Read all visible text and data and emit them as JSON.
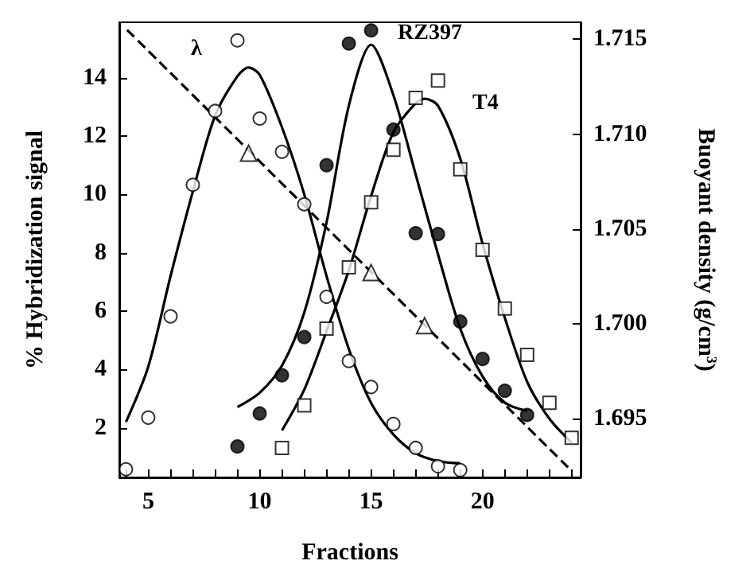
{
  "chart_data": {
    "type": "scatter",
    "xlabel": "Fractions",
    "ylabel": "% Hybridization signal",
    "y2label": "Buoyant density (g/cm$^{3}$)",
    "xlim": [
      3.7,
      24.4
    ],
    "xticks": [
      {
        "value": 4,
        "label": null
      },
      5,
      {
        "value": 6,
        "label": null
      },
      {
        "value": 7,
        "label": null
      },
      {
        "value": 8,
        "label": null
      },
      {
        "value": 9,
        "label": null
      },
      10,
      {
        "value": 11,
        "label": null
      },
      {
        "value": 12,
        "label": null
      },
      {
        "value": 13,
        "label": null
      },
      {
        "value": 14,
        "label": null
      },
      15,
      {
        "value": 16,
        "label": null
      },
      {
        "value": 17,
        "label": null
      },
      {
        "value": 18,
        "label": null
      },
      {
        "value": 19,
        "label": null
      },
      20,
      {
        "value": 21,
        "label": null
      },
      {
        "value": 22,
        "label": null
      },
      {
        "value": 23,
        "label": null
      },
      {
        "value": 24,
        "label": null
      }
    ],
    "ylim": [
      0.3,
      15.9
    ],
    "yticks": [
      2,
      4,
      6,
      8,
      10,
      12,
      14
    ],
    "y2lim": [
      1.6919,
      1.7159
    ],
    "y2ticks": [
      {
        "value": 1.695,
        "label": "1.695"
      },
      {
        "value": 1.7,
        "label": "1.700"
      },
      {
        "value": 1.705,
        "label": "1.705"
      },
      {
        "value": 1.71,
        "label": "1.710"
      },
      {
        "value": 1.715,
        "label": "1.715"
      }
    ],
    "grid": false,
    "series": [
      {
        "marker": "circle",
        "color": "#ffffff",
        "x": [
          4,
          5,
          6,
          7,
          8,
          9,
          10,
          11,
          12,
          13,
          14,
          15,
          16,
          17,
          18,
          19
        ],
        "values": [
          0.58,
          2.35,
          5.82,
          10.33,
          12.86,
          15.28,
          12.6,
          11.46,
          9.66,
          6.49,
          4.29,
          3.4,
          2.13,
          1.31,
          0.68,
          0.55
        ]
      },
      {
        "marker": "circle",
        "color": "#000000",
        "x": [
          9,
          10,
          11,
          12,
          13,
          14,
          15,
          16,
          17,
          18,
          19,
          20,
          21,
          22
        ],
        "values": [
          1.36,
          2.49,
          3.8,
          5.11,
          11.0,
          15.17,
          15.62,
          12.22,
          8.67,
          8.64,
          5.64,
          4.36,
          3.27,
          2.44
        ]
      },
      {
        "marker": "square",
        "color": "#ffffff",
        "x": [
          11,
          12,
          13,
          14,
          15,
          16,
          17,
          18,
          19,
          20,
          21,
          22,
          23,
          24
        ],
        "values": [
          1.31,
          2.77,
          5.4,
          7.5,
          9.73,
          11.53,
          13.31,
          13.9,
          10.86,
          8.1,
          6.09,
          4.5,
          2.86,
          1.66
        ]
      },
      {
        "marker": "triangle",
        "color": "#ffffff",
        "axis": "y2",
        "x": [
          9.5,
          15,
          17.4
        ],
        "values": [
          1.709,
          1.7027,
          1.6999
        ]
      },
      {
        "type": "line",
        "marker": "none",
        "line_style": "solid",
        "color": "#000000",
        "x": [
          4,
          5,
          6,
          7,
          8,
          9,
          9.5,
          10,
          11,
          12,
          13,
          14,
          15,
          16,
          17,
          18,
          19
        ],
        "values": [
          2.2,
          4.1,
          7.2,
          10.1,
          12.7,
          14.05,
          14.35,
          14.1,
          12.3,
          10.0,
          7.2,
          4.7,
          2.85,
          1.77,
          1.13,
          0.86,
          0.78
        ]
      },
      {
        "type": "line",
        "marker": "none",
        "line_style": "solid",
        "color": "#000000",
        "x": [
          9,
          10,
          11,
          12,
          13,
          14,
          15,
          16,
          17,
          18,
          19,
          20,
          21,
          22
        ],
        "values": [
          2.71,
          3.2,
          4.13,
          5.95,
          9.04,
          13.04,
          15.13,
          13.4,
          10.68,
          7.95,
          5.4,
          3.76,
          2.86,
          2.58
        ]
      },
      {
        "type": "line",
        "marker": "none",
        "line_style": "solid",
        "color": "#000000",
        "x": [
          11,
          12,
          13,
          14,
          15,
          16,
          17,
          17.4,
          18,
          19,
          20,
          21,
          22,
          23,
          24
        ],
        "values": [
          1.91,
          3.31,
          5.31,
          7.4,
          9.95,
          12.13,
          13.13,
          13.28,
          13.04,
          11.22,
          8.31,
          5.77,
          3.58,
          2.31,
          1.49
        ]
      },
      {
        "type": "line",
        "marker": "none",
        "line_style": "dashed",
        "color": "#000000",
        "axis": "y2",
        "x": [
          4.05,
          23.86
        ],
        "values": [
          1.7155,
          1.6924
        ]
      }
    ],
    "annotations": [
      "λ",
      "RZ397",
      "T4"
    ]
  }
}
